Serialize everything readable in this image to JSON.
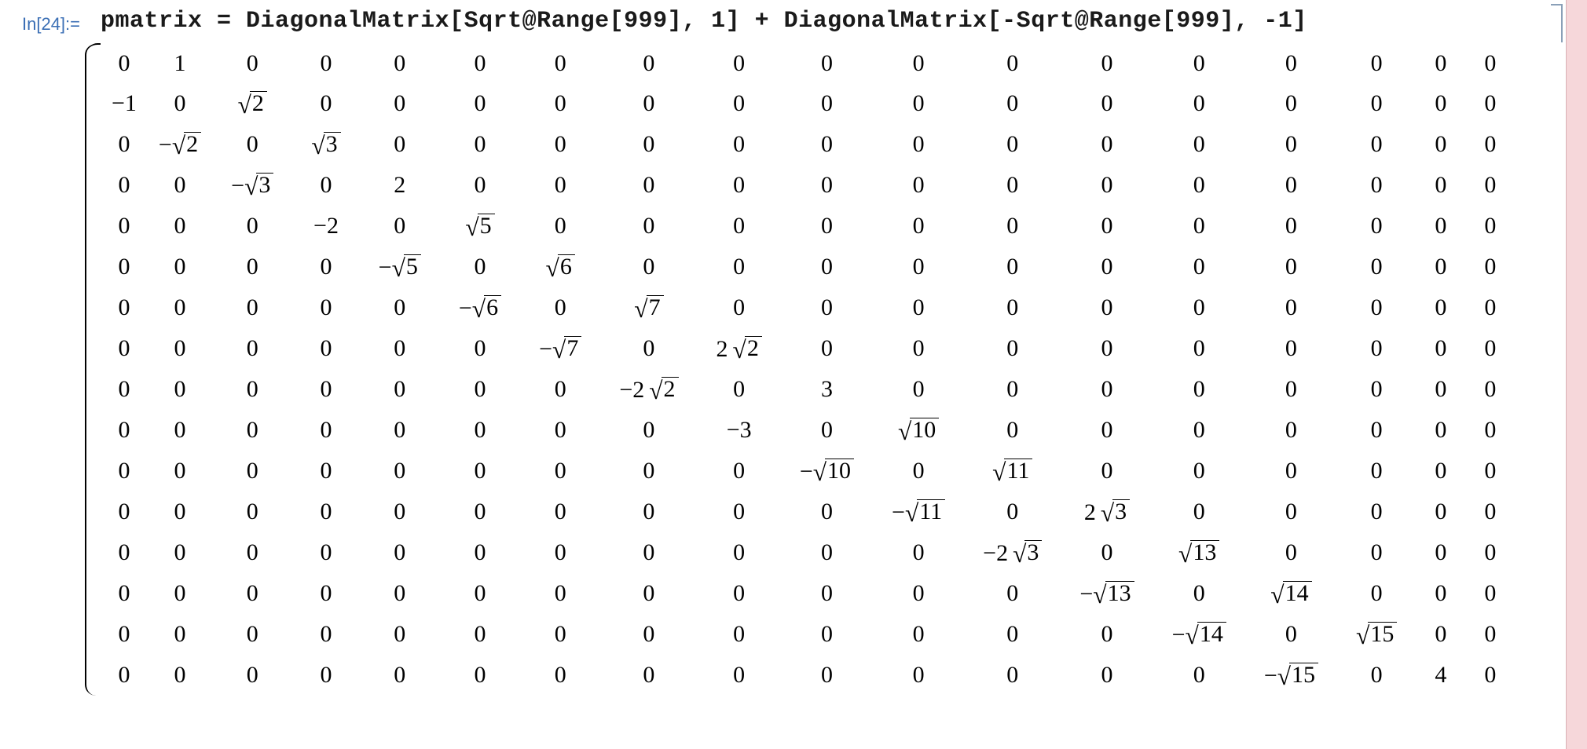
{
  "input": {
    "label": "In[24]:=",
    "code": "pmatrix = DiagonalMatrix[Sqrt@Range[999], 1] + DiagonalMatrix[-Sqrt@Range[999], -1]"
  },
  "matrix": {
    "type": "table",
    "rows_shown": 16,
    "cols_shown": 18,
    "font_family": "Times New Roman",
    "font_size_pt": 22,
    "cell_color": "#000000",
    "background_color": "#ffffff",
    "bracket_color": "#8aa0b8",
    "right_strip_color": "#f6d7da",
    "paren_type": "round-left-only-visible",
    "values_tex": [
      [
        "0",
        "1",
        "0",
        "0",
        "0",
        "0",
        "0",
        "0",
        "0",
        "0",
        "0",
        "0",
        "0",
        "0",
        "0",
        "0",
        "0",
        "0"
      ],
      [
        "-1",
        "0",
        "\\sqrt{2}",
        "0",
        "0",
        "0",
        "0",
        "0",
        "0",
        "0",
        "0",
        "0",
        "0",
        "0",
        "0",
        "0",
        "0",
        "0"
      ],
      [
        "0",
        "-\\sqrt{2}",
        "0",
        "\\sqrt{3}",
        "0",
        "0",
        "0",
        "0",
        "0",
        "0",
        "0",
        "0",
        "0",
        "0",
        "0",
        "0",
        "0",
        "0"
      ],
      [
        "0",
        "0",
        "-\\sqrt{3}",
        "0",
        "2",
        "0",
        "0",
        "0",
        "0",
        "0",
        "0",
        "0",
        "0",
        "0",
        "0",
        "0",
        "0",
        "0"
      ],
      [
        "0",
        "0",
        "0",
        "-2",
        "0",
        "\\sqrt{5}",
        "0",
        "0",
        "0",
        "0",
        "0",
        "0",
        "0",
        "0",
        "0",
        "0",
        "0",
        "0"
      ],
      [
        "0",
        "0",
        "0",
        "0",
        "-\\sqrt{5}",
        "0",
        "\\sqrt{6}",
        "0",
        "0",
        "0",
        "0",
        "0",
        "0",
        "0",
        "0",
        "0",
        "0",
        "0"
      ],
      [
        "0",
        "0",
        "0",
        "0",
        "0",
        "-\\sqrt{6}",
        "0",
        "\\sqrt{7}",
        "0",
        "0",
        "0",
        "0",
        "0",
        "0",
        "0",
        "0",
        "0",
        "0"
      ],
      [
        "0",
        "0",
        "0",
        "0",
        "0",
        "0",
        "-\\sqrt{7}",
        "0",
        "2\\sqrt{2}",
        "0",
        "0",
        "0",
        "0",
        "0",
        "0",
        "0",
        "0",
        "0"
      ],
      [
        "0",
        "0",
        "0",
        "0",
        "0",
        "0",
        "0",
        "-2\\sqrt{2}",
        "0",
        "3",
        "0",
        "0",
        "0",
        "0",
        "0",
        "0",
        "0",
        "0"
      ],
      [
        "0",
        "0",
        "0",
        "0",
        "0",
        "0",
        "0",
        "0",
        "-3",
        "0",
        "\\sqrt{10}",
        "0",
        "0",
        "0",
        "0",
        "0",
        "0",
        "0"
      ],
      [
        "0",
        "0",
        "0",
        "0",
        "0",
        "0",
        "0",
        "0",
        "0",
        "-\\sqrt{10}",
        "0",
        "\\sqrt{11}",
        "0",
        "0",
        "0",
        "0",
        "0",
        "0"
      ],
      [
        "0",
        "0",
        "0",
        "0",
        "0",
        "0",
        "0",
        "0",
        "0",
        "0",
        "-\\sqrt{11}",
        "0",
        "2\\sqrt{3}",
        "0",
        "0",
        "0",
        "0",
        "0"
      ],
      [
        "0",
        "0",
        "0",
        "0",
        "0",
        "0",
        "0",
        "0",
        "0",
        "0",
        "0",
        "-2\\sqrt{3}",
        "0",
        "\\sqrt{13}",
        "0",
        "0",
        "0",
        "0"
      ],
      [
        "0",
        "0",
        "0",
        "0",
        "0",
        "0",
        "0",
        "0",
        "0",
        "0",
        "0",
        "0",
        "-\\sqrt{13}",
        "0",
        "\\sqrt{14}",
        "0",
        "0",
        "0"
      ],
      [
        "0",
        "0",
        "0",
        "0",
        "0",
        "0",
        "0",
        "0",
        "0",
        "0",
        "0",
        "0",
        "0",
        "-\\sqrt{14}",
        "0",
        "\\sqrt{15}",
        "0",
        "0"
      ],
      [
        "0",
        "0",
        "0",
        "0",
        "0",
        "0",
        "0",
        "0",
        "0",
        "0",
        "0",
        "0",
        "0",
        "0",
        "-\\sqrt{15}",
        "0",
        "4",
        "0"
      ]
    ]
  },
  "colors": {
    "in_label": "#3b6fb5",
    "code": "#1a1a1a",
    "cell_bracket": "#8aa0b8",
    "right_strip": "#f6d7da",
    "right_strip_border": "#d9b1b5"
  }
}
